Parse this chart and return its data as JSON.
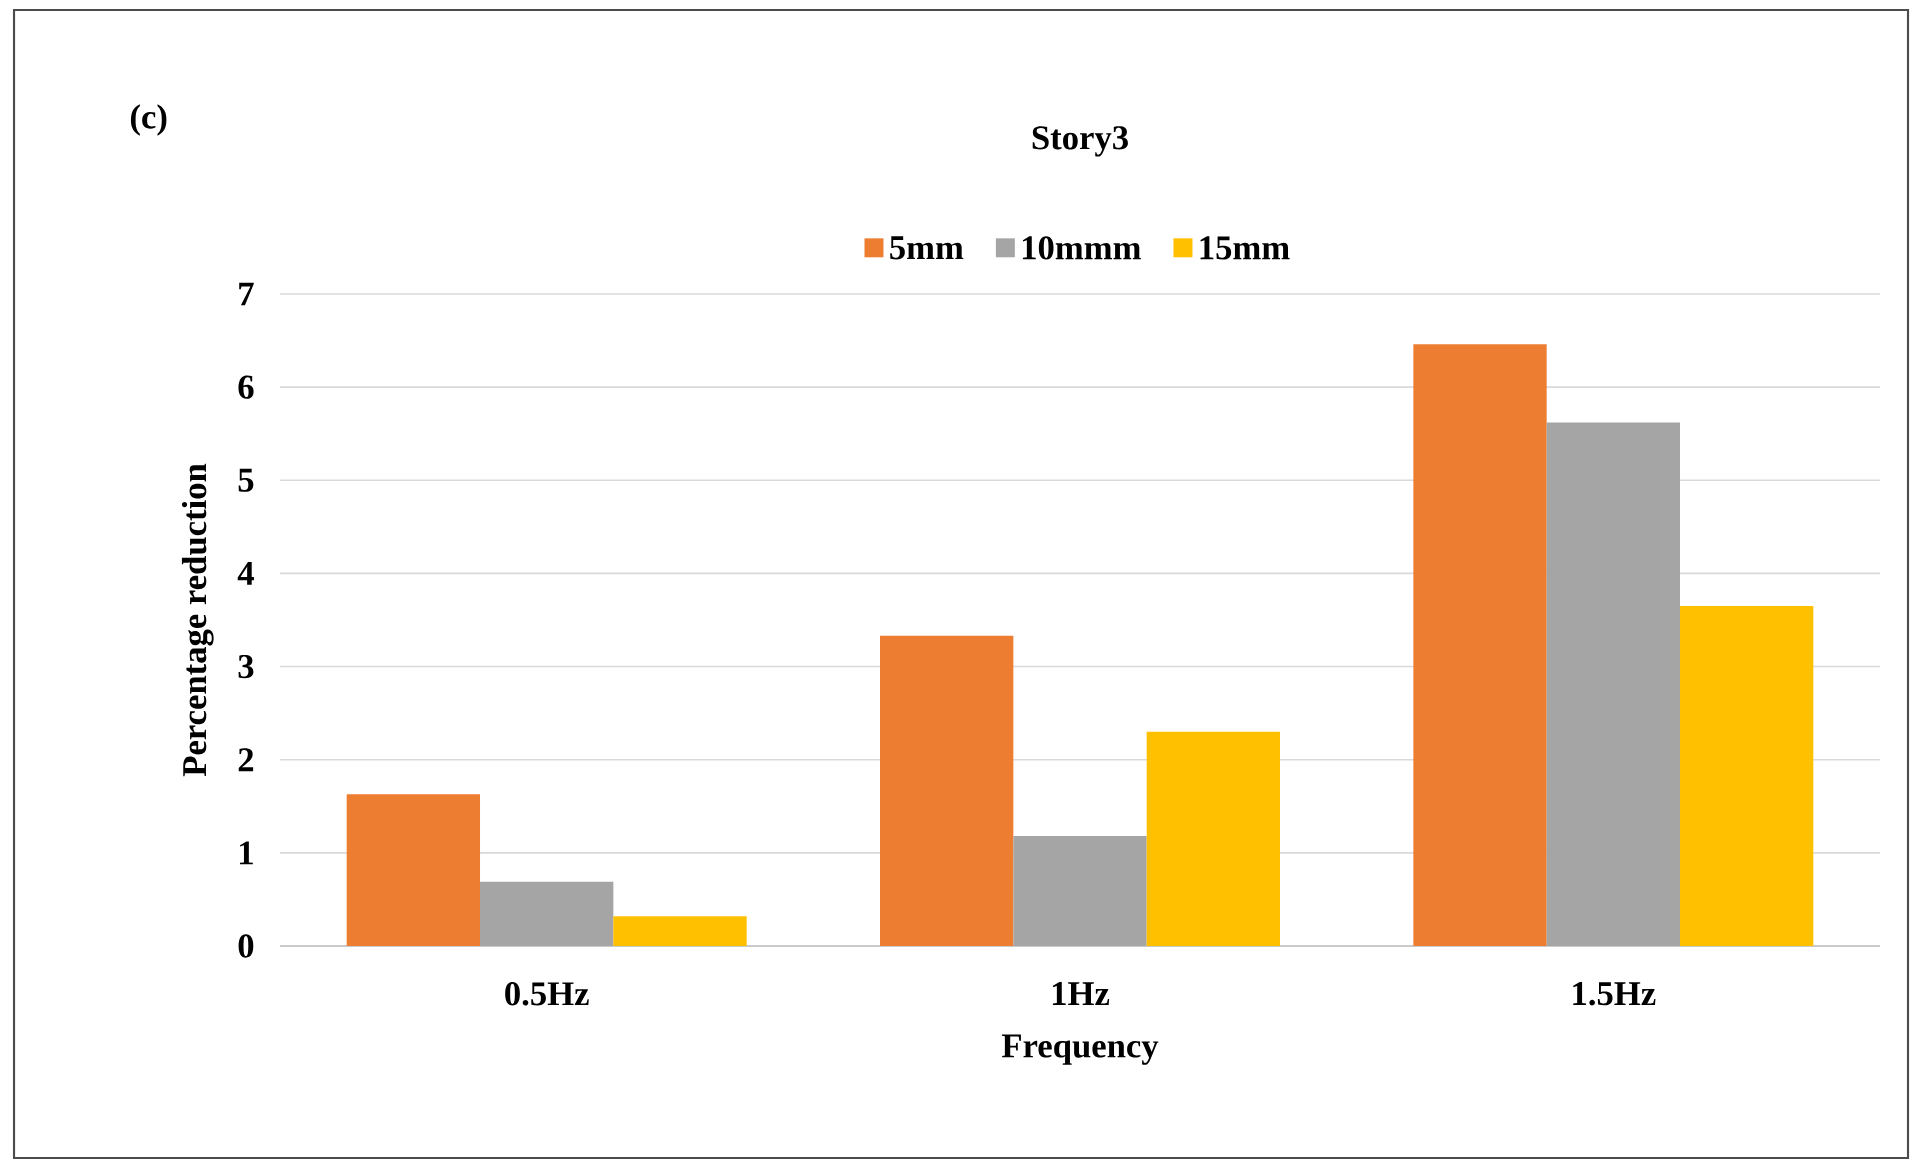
{
  "chart_data": {
    "type": "bar",
    "title": "Story3",
    "xlabel": "Frequency",
    "ylabel": "Percentage reduction",
    "categories": [
      "0.5Hz",
      "1Hz",
      "1.5Hz"
    ],
    "series": [
      {
        "name": "5mm",
        "color": "#ed7d31",
        "values": [
          1.63,
          3.33,
          6.46
        ]
      },
      {
        "name": "10mmm",
        "color": "#a5a5a5",
        "values": [
          0.69,
          1.18,
          5.62
        ]
      },
      {
        "name": "15mm",
        "color": "#ffc000",
        "values": [
          0.32,
          2.3,
          3.65
        ]
      }
    ],
    "ylim": [
      0,
      7
    ],
    "yticks": [
      0,
      1,
      2,
      3,
      4,
      5,
      6,
      7
    ],
    "grid": "y",
    "legend": "top",
    "annotations": [
      "(c)"
    ]
  }
}
